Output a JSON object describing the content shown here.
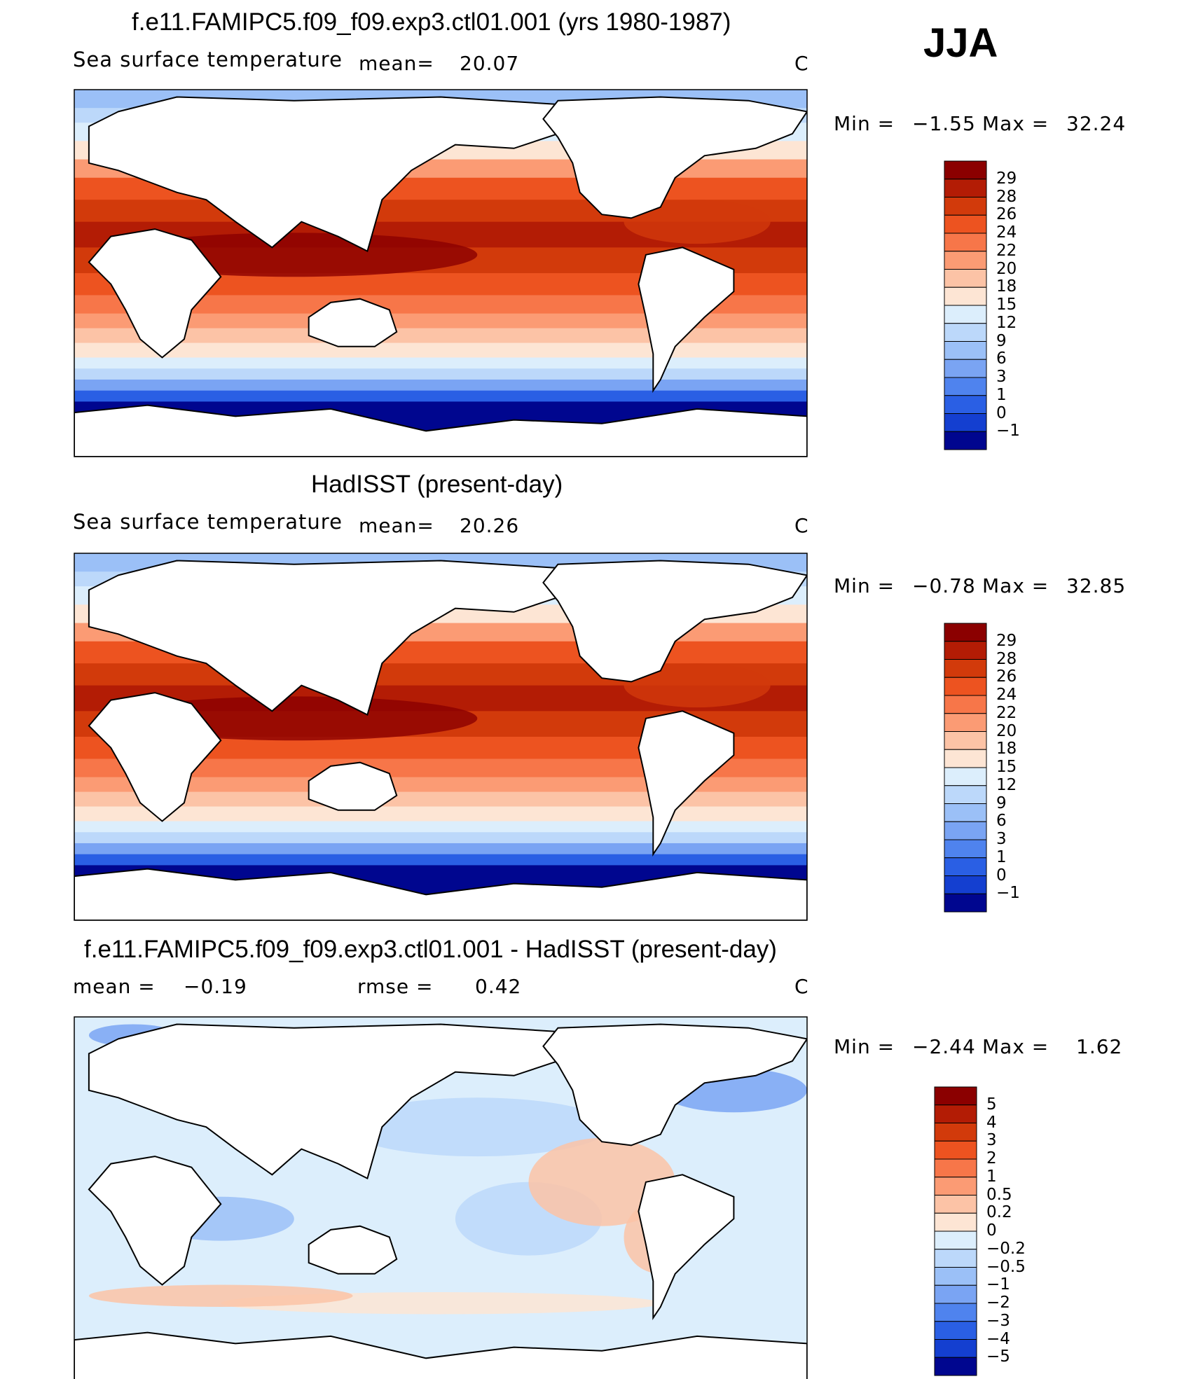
{
  "season": "JJA",
  "panels": [
    {
      "title": "f.e11.FAMIPC5.f09_f09.exp3.ctl01.001 (yrs 1980-1987)",
      "variable": "Sea surface temperature",
      "stat_left": "mean=",
      "stat_left_value": "20.07",
      "stat_mid": "",
      "stat_mid_value": "",
      "units": "C",
      "min_label": "Min =",
      "min_value": "−1.55",
      "max_label": "Max =",
      "max_value": "32.24"
    },
    {
      "title": "HadISST (present-day)",
      "variable": "Sea surface temperature",
      "stat_left": "mean=",
      "stat_left_value": "20.26",
      "stat_mid": "",
      "stat_mid_value": "",
      "units": "C",
      "min_label": "Min =",
      "min_value": "−0.78",
      "max_label": "Max =",
      "max_value": "32.85"
    },
    {
      "title": "f.e11.FAMIPC5.f09_f09.exp3.ctl01.001 - HadISST (present-day)",
      "variable": "",
      "stat_left": "mean =",
      "stat_left_value": "−0.19",
      "stat_mid": "rmse =",
      "stat_mid_value": "0.42",
      "units": "C",
      "min_label": "Min =",
      "min_value": "−2.44",
      "max_label": "Max =",
      "max_value": "1.62"
    }
  ],
  "chart_data": [
    {
      "type": "heatmap",
      "title": "f.e11.FAMIPC5.f09_f09.exp3.ctl01.001 (yrs 1980-1987)",
      "variable": "Sea surface temperature",
      "units": "C",
      "mean": 20.07,
      "min": -1.55,
      "max": 32.24,
      "colorbar_levels": [
        "29",
        "28",
        "26",
        "24",
        "22",
        "20",
        "18",
        "15",
        "12",
        "9",
        "6",
        "3",
        "1",
        "0",
        "−1"
      ],
      "colorbar_colors": [
        "#8b0000",
        "#b31c05",
        "#d23a0b",
        "#ed5320",
        "#f77649",
        "#fb9b74",
        "#fcc3a6",
        "#fde5d4",
        "#dceefc",
        "#bcd8fa",
        "#9bc0f7",
        "#7aa4f3",
        "#4f83ee",
        "#2a5fe4",
        "#143fd0",
        "#00068f"
      ]
    },
    {
      "type": "heatmap",
      "title": "HadISST (present-day)",
      "variable": "Sea surface temperature",
      "units": "C",
      "mean": 20.26,
      "min": -0.78,
      "max": 32.85,
      "colorbar_levels": [
        "29",
        "28",
        "26",
        "24",
        "22",
        "20",
        "18",
        "15",
        "12",
        "9",
        "6",
        "3",
        "1",
        "0",
        "−1"
      ],
      "colorbar_colors": [
        "#8b0000",
        "#b31c05",
        "#d23a0b",
        "#ed5320",
        "#f77649",
        "#fb9b74",
        "#fcc3a6",
        "#fde5d4",
        "#dceefc",
        "#bcd8fa",
        "#9bc0f7",
        "#7aa4f3",
        "#4f83ee",
        "#2a5fe4",
        "#143fd0",
        "#00068f"
      ]
    },
    {
      "type": "heatmap",
      "title": "f.e11.FAMIPC5.f09_f09.exp3.ctl01.001 - HadISST (present-day)",
      "units": "C",
      "mean": -0.19,
      "rmse": 0.42,
      "min": -2.44,
      "max": 1.62,
      "colorbar_levels": [
        "5",
        "4",
        "3",
        "2",
        "1",
        "0.5",
        "0.2",
        "0",
        "−0.2",
        "−0.5",
        "−1",
        "−2",
        "−3",
        "−4",
        "−5"
      ],
      "colorbar_colors": [
        "#8b0000",
        "#b31c05",
        "#d23a0b",
        "#ed5320",
        "#f77649",
        "#fb9b74",
        "#fcc3a6",
        "#fde5d4",
        "#dceefc",
        "#bcd8fa",
        "#9bc0f7",
        "#7aa4f3",
        "#4f83ee",
        "#2a5fe4",
        "#143fd0",
        "#00068f"
      ]
    }
  ]
}
